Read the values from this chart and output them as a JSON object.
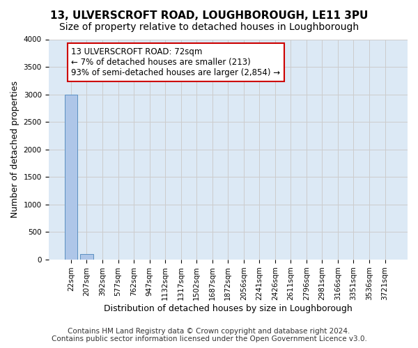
{
  "title": "13, ULVERSCROFT ROAD, LOUGHBOROUGH, LE11 3PU",
  "subtitle": "Size of property relative to detached houses in Loughborough",
  "xlabel": "Distribution of detached houses by size in Loughborough",
  "ylabel": "Number of detached properties",
  "footer_line1": "Contains HM Land Registry data © Crown copyright and database right 2024.",
  "footer_line2": "Contains public sector information licensed under the Open Government Licence v3.0.",
  "bar_values": [
    3000,
    100,
    0,
    0,
    0,
    0,
    0,
    0,
    0,
    0,
    0,
    0,
    0,
    0,
    0,
    0,
    0,
    0,
    0,
    0,
    0
  ],
  "bar_color": "#aec6e8",
  "bar_edge_color": "#5a8fc0",
  "categories": [
    "22sqm",
    "207sqm",
    "392sqm",
    "577sqm",
    "762sqm",
    "947sqm",
    "1132sqm",
    "1317sqm",
    "1502sqm",
    "1687sqm",
    "1872sqm",
    "2056sqm",
    "2241sqm",
    "2426sqm",
    "2611sqm",
    "2796sqm",
    "2981sqm",
    "3166sqm",
    "3351sqm",
    "3536sqm",
    "3721sqm"
  ],
  "ylim": [
    0,
    4000
  ],
  "yticks": [
    0,
    500,
    1000,
    1500,
    2000,
    2500,
    3000,
    3500,
    4000
  ],
  "annotation_text": "13 ULVERSCROFT ROAD: 72sqm\n← 7% of detached houses are smaller (213)\n93% of semi-detached houses are larger (2,854) →",
  "annotation_box_color": "#cc0000",
  "annotation_bg_color": "#ffffff",
  "grid_color": "#cccccc",
  "bg_color": "#dce9f5",
  "fig_bg_color": "#ffffff",
  "title_fontsize": 11,
  "subtitle_fontsize": 10,
  "ylabel_fontsize": 9,
  "xlabel_fontsize": 9,
  "tick_fontsize": 7.5,
  "annotation_fontsize": 8.5,
  "footer_fontsize": 7.5
}
